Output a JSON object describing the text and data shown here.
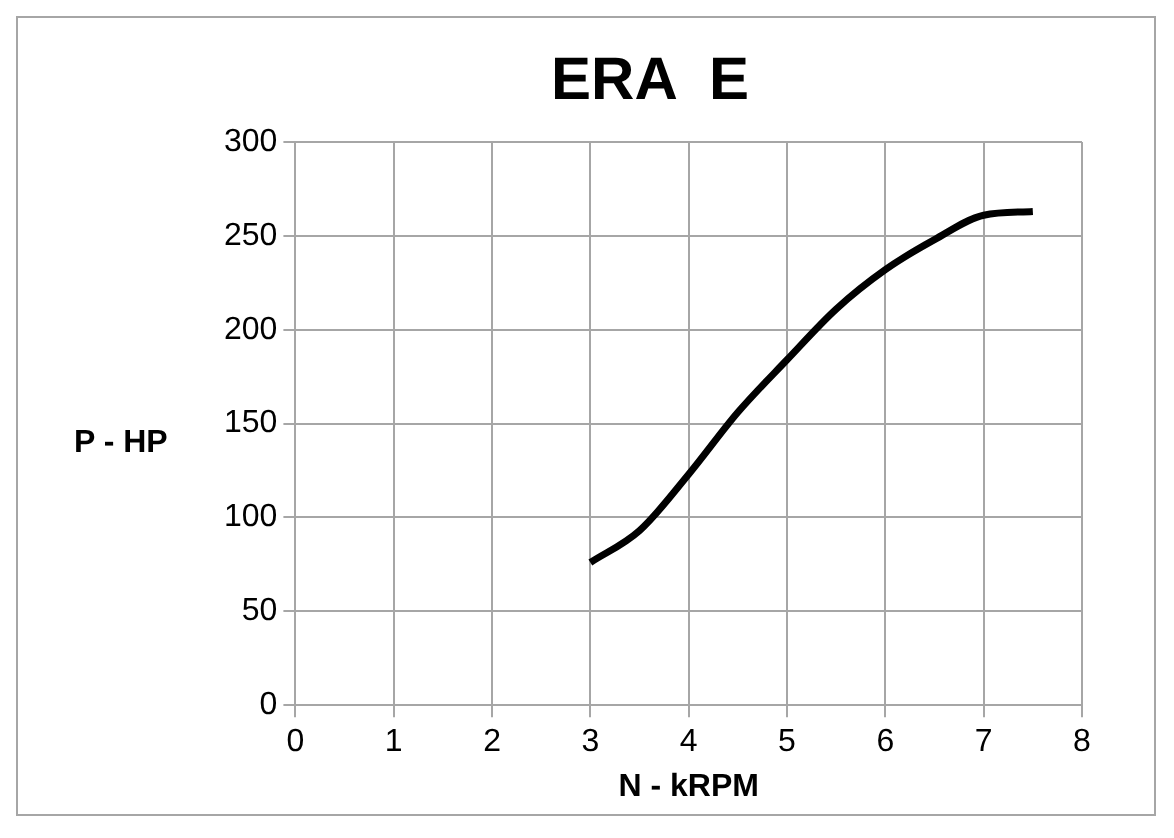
{
  "chart_data": {
    "type": "line",
    "title": "ERA  E",
    "xlabel": "N - kRPM",
    "ylabel": "P - HP",
    "x": [
      3,
      3.5,
      4,
      4.5,
      5,
      5.5,
      6,
      6.5,
      7,
      7.5
    ],
    "series": [
      {
        "color": "#000000",
        "values": [
          76,
          93,
          123,
          156,
          184,
          211,
          232,
          248,
          261,
          263
        ]
      }
    ],
    "xlim": [
      0,
      8
    ],
    "xticks": [
      0,
      1,
      2,
      3,
      4,
      5,
      6,
      7,
      8
    ],
    "ylim": [
      0,
      300
    ],
    "yticks": [
      0,
      50,
      100,
      150,
      200,
      250,
      300
    ],
    "grid": true,
    "legend": false,
    "marker": "none",
    "line_style": "solid"
  }
}
